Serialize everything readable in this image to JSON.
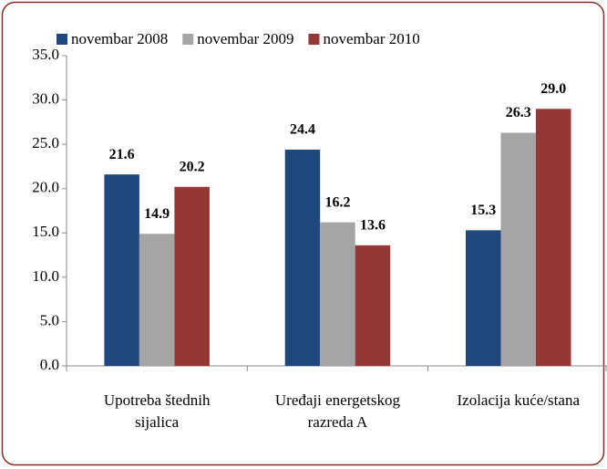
{
  "chart_data": {
    "type": "bar",
    "categories": [
      [
        "Upotreba štednih",
        "sijalica"
      ],
      [
        "Uređaji energetskog",
        "razreda A"
      ],
      [
        "Izolacija kuće/stana"
      ]
    ],
    "series": [
      {
        "name": "novembar 2008",
        "color": "#1f497d",
        "values": [
          21.6,
          24.4,
          15.3
        ],
        "value_labels": [
          "21.6",
          "24.4",
          "15.3"
        ]
      },
      {
        "name": "novembar 2009",
        "color": "#a5a5a5",
        "values": [
          14.9,
          16.2,
          26.3
        ],
        "value_labels": [
          "14.9",
          "16.2",
          "26.3"
        ]
      },
      {
        "name": "novembar 2010",
        "color": "#953735",
        "values": [
          20.2,
          13.6,
          29
        ],
        "value_labels": [
          "20.2",
          "13.6",
          "29.0"
        ]
      }
    ],
    "ylim": [
      0,
      35
    ],
    "yticks": [
      {
        "value": 0,
        "label": "0.0"
      },
      {
        "value": 5,
        "label": "5.0"
      },
      {
        "value": 10,
        "label": "10.0"
      },
      {
        "value": 15,
        "label": "15.0"
      },
      {
        "value": 20,
        "label": "20.0"
      },
      {
        "value": 25,
        "label": "25.0"
      },
      {
        "value": 30,
        "label": "30.0"
      },
      {
        "value": 35,
        "label": "35.0"
      }
    ],
    "grid": false,
    "legend": "top"
  }
}
